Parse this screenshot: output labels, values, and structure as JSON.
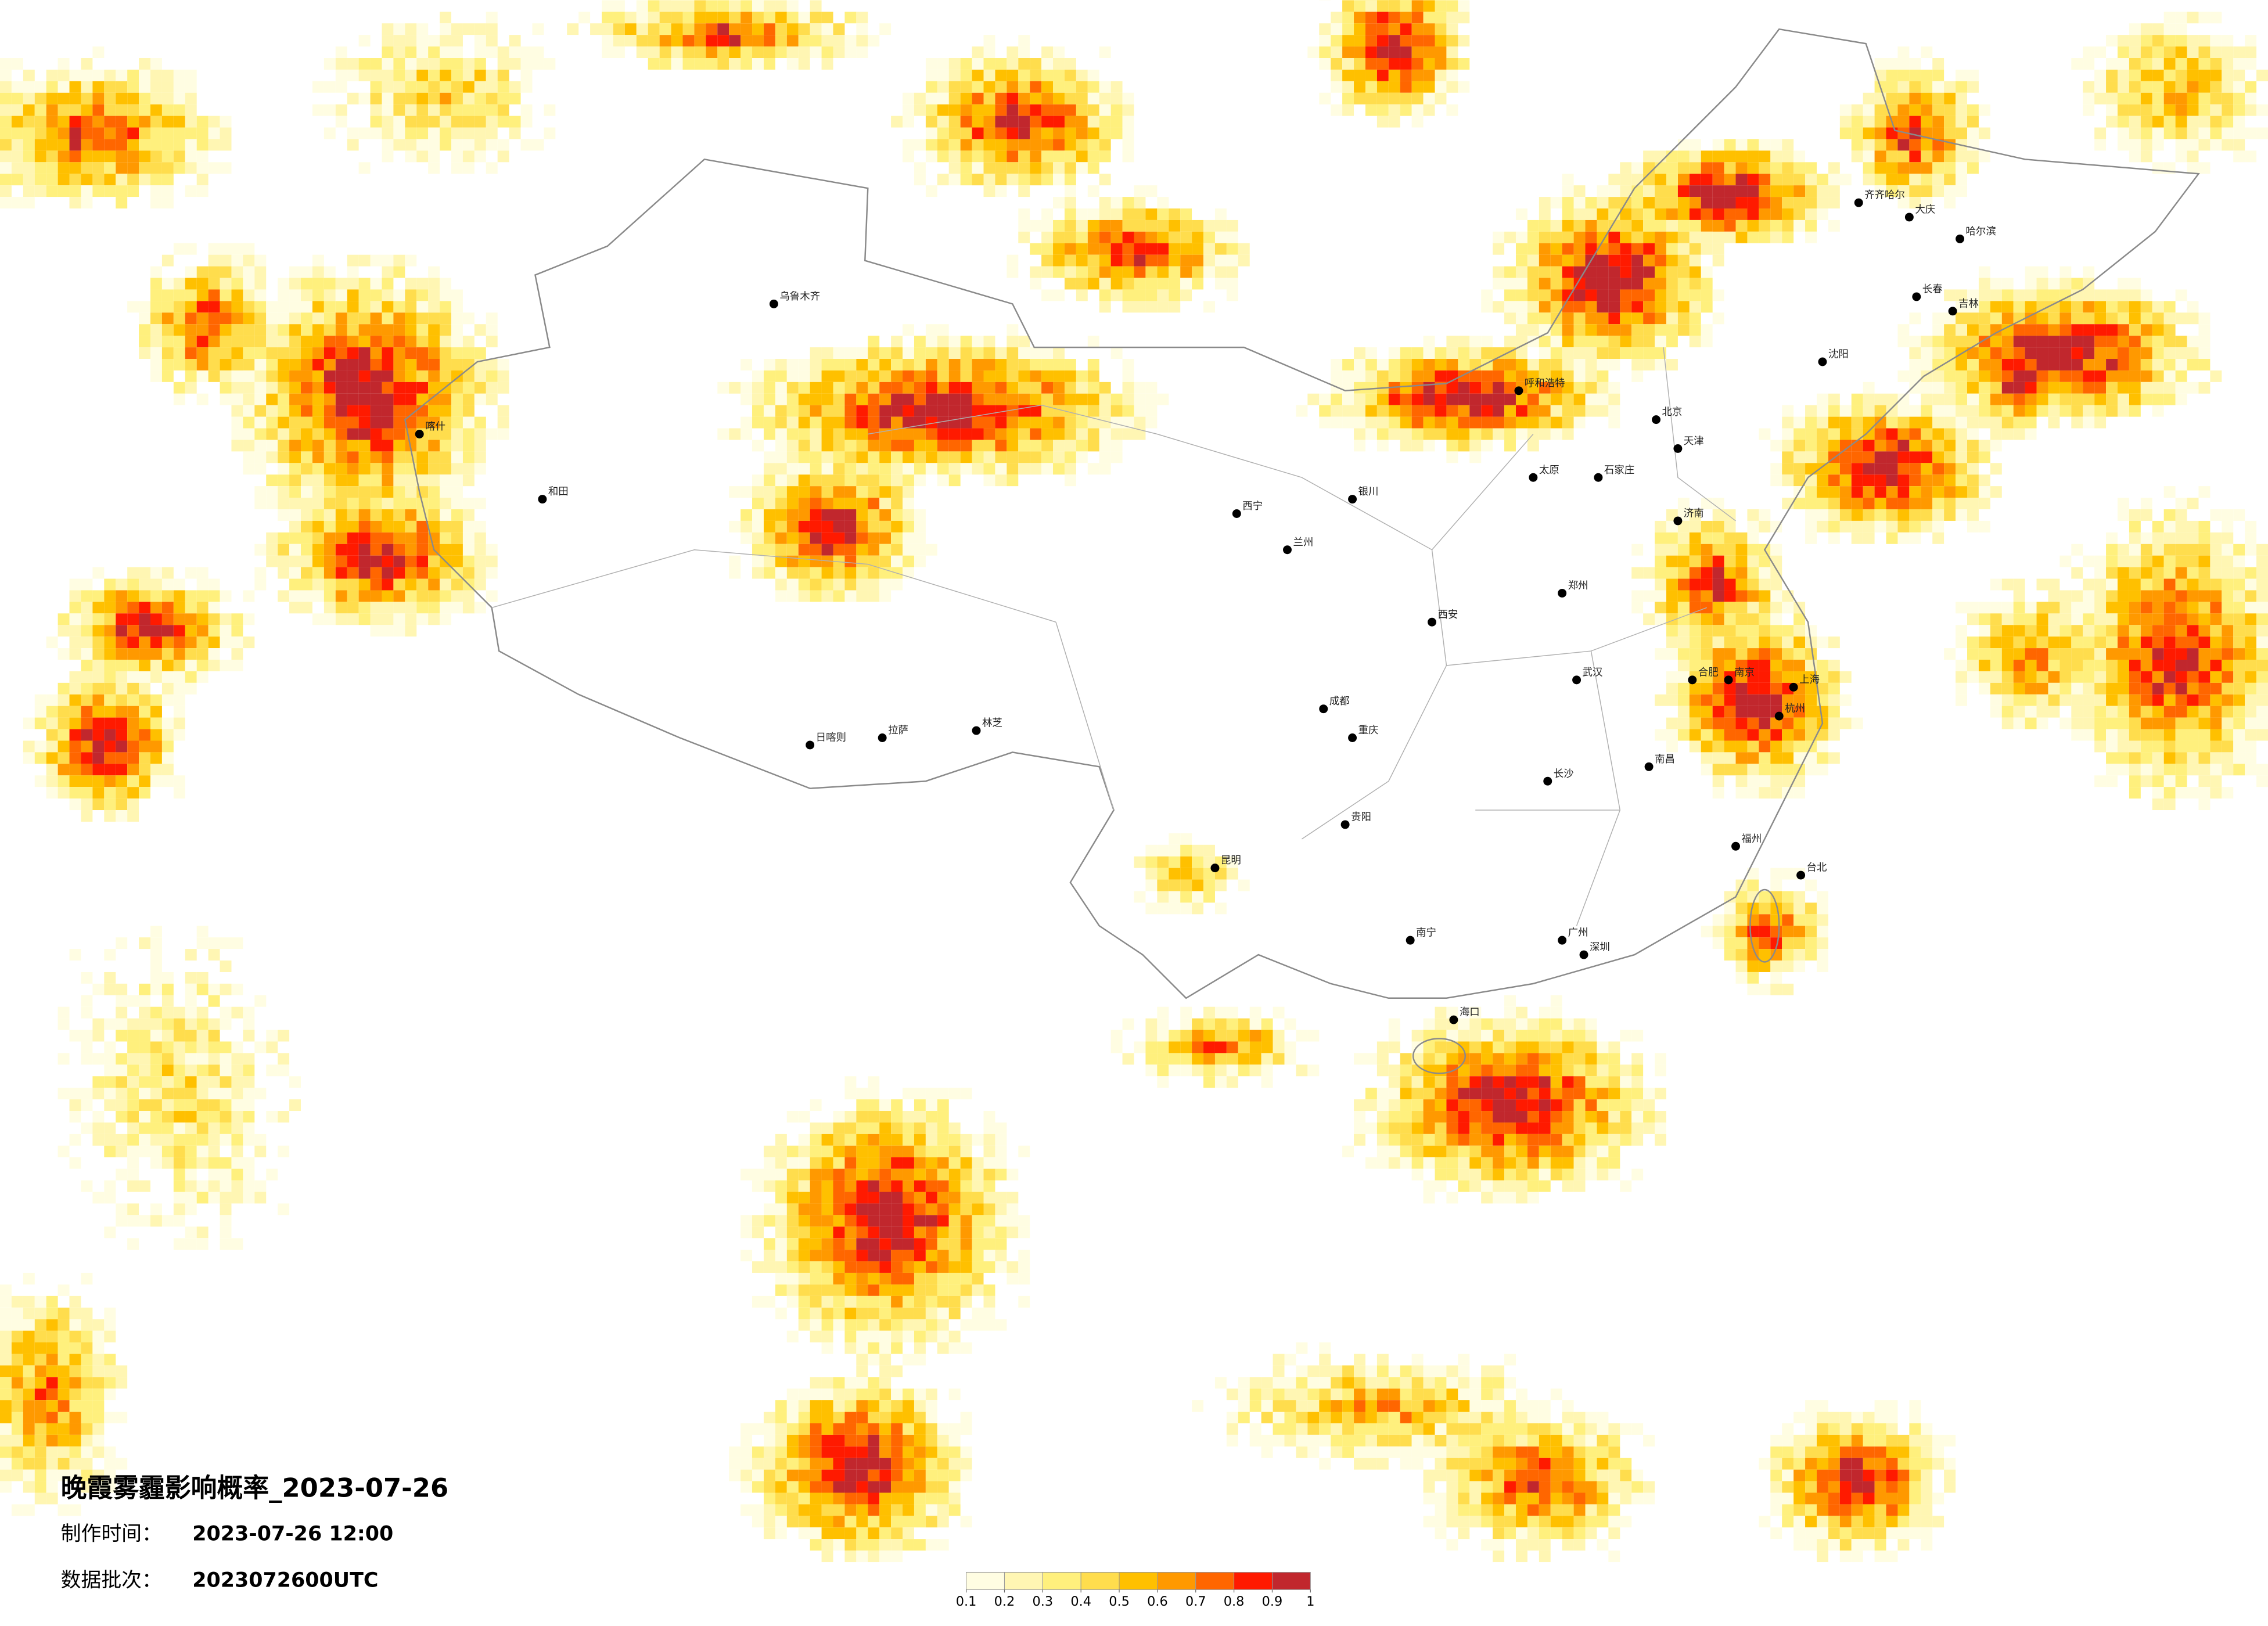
{
  "title": "晚霞雾霾影响概率_2023-07-26",
  "meta": [
    {
      "label": "制作时间：",
      "value": "2023-07-26 12:00"
    },
    {
      "label": "数据批次：",
      "value": "2023072600UTC"
    }
  ],
  "legend": {
    "colors": [
      "#fffde2",
      "#fff6b3",
      "#fff07d",
      "#ffdd4d",
      "#ffc000",
      "#ff9900",
      "#ff6600",
      "#ff1a00",
      "#c1272d"
    ],
    "ticks": [
      0.1,
      0.2,
      0.3,
      0.4,
      0.5,
      0.6,
      0.7,
      0.8,
      0.9,
      1
    ]
  },
  "cities": [
    "北京",
    "天津",
    "上海",
    "南京",
    "杭州",
    "广州",
    "深圳",
    "武汉",
    "长沙",
    "成都",
    "重庆",
    "西安",
    "兰州",
    "西宁",
    "拉萨",
    "乌鲁木齐",
    "哈尔滨",
    "长春",
    "沈阳",
    "郑州",
    "济南",
    "石家庄",
    "太原",
    "呼和浩特",
    "银川",
    "昆明",
    "贵阳",
    "南宁",
    "南昌",
    "福州",
    "合肥",
    "海口",
    "台北",
    "和田",
    "喀什",
    "日喀则",
    "林芝",
    "大庆",
    "齐齐哈尔",
    "吉林"
  ]
}
